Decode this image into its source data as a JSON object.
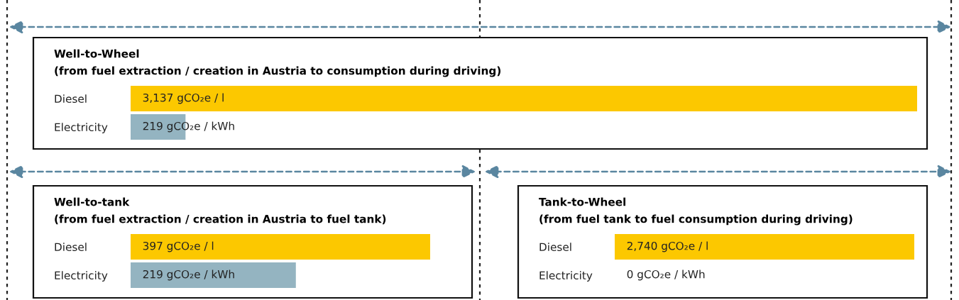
{
  "chart_data": [
    {
      "type": "bar",
      "orientation": "horizontal",
      "title": "Well-to-Wheel",
      "subtitle": "(from fuel extraction / creation in Austria to consumption during driving)",
      "categories": [
        "Diesel",
        "Electricity"
      ],
      "values": [
        3137,
        219
      ],
      "colors": [
        "#fcc800",
        "#94b4c1"
      ],
      "value_labels": [
        "3,137 gCO₂e / l",
        "219 gCO₂e / kWh"
      ],
      "grid": false,
      "legend": false
    },
    {
      "type": "bar",
      "orientation": "horizontal",
      "title": "Well-to-tank",
      "subtitle": "(from fuel extraction / creation in Austria to fuel tank)",
      "categories": [
        "Diesel",
        "Electricity"
      ],
      "values": [
        397,
        219
      ],
      "colors": [
        "#fcc800",
        "#94b4c1"
      ],
      "value_labels": [
        "397 gCO₂e / l",
        "219 gCO₂e / kWh"
      ],
      "grid": false,
      "legend": false
    },
    {
      "type": "bar",
      "orientation": "horizontal",
      "title": "Tank-to-Wheel",
      "subtitle": "(from fuel tank to fuel consumption during driving)",
      "categories": [
        "Diesel",
        "Electricity"
      ],
      "values": [
        2740,
        0
      ],
      "colors": [
        "#fcc800",
        "#94b4c1"
      ],
      "value_labels": [
        "2,740 gCO₂e / l",
        "0 gCO₂e / kWh"
      ],
      "grid": false,
      "legend": false
    }
  ]
}
